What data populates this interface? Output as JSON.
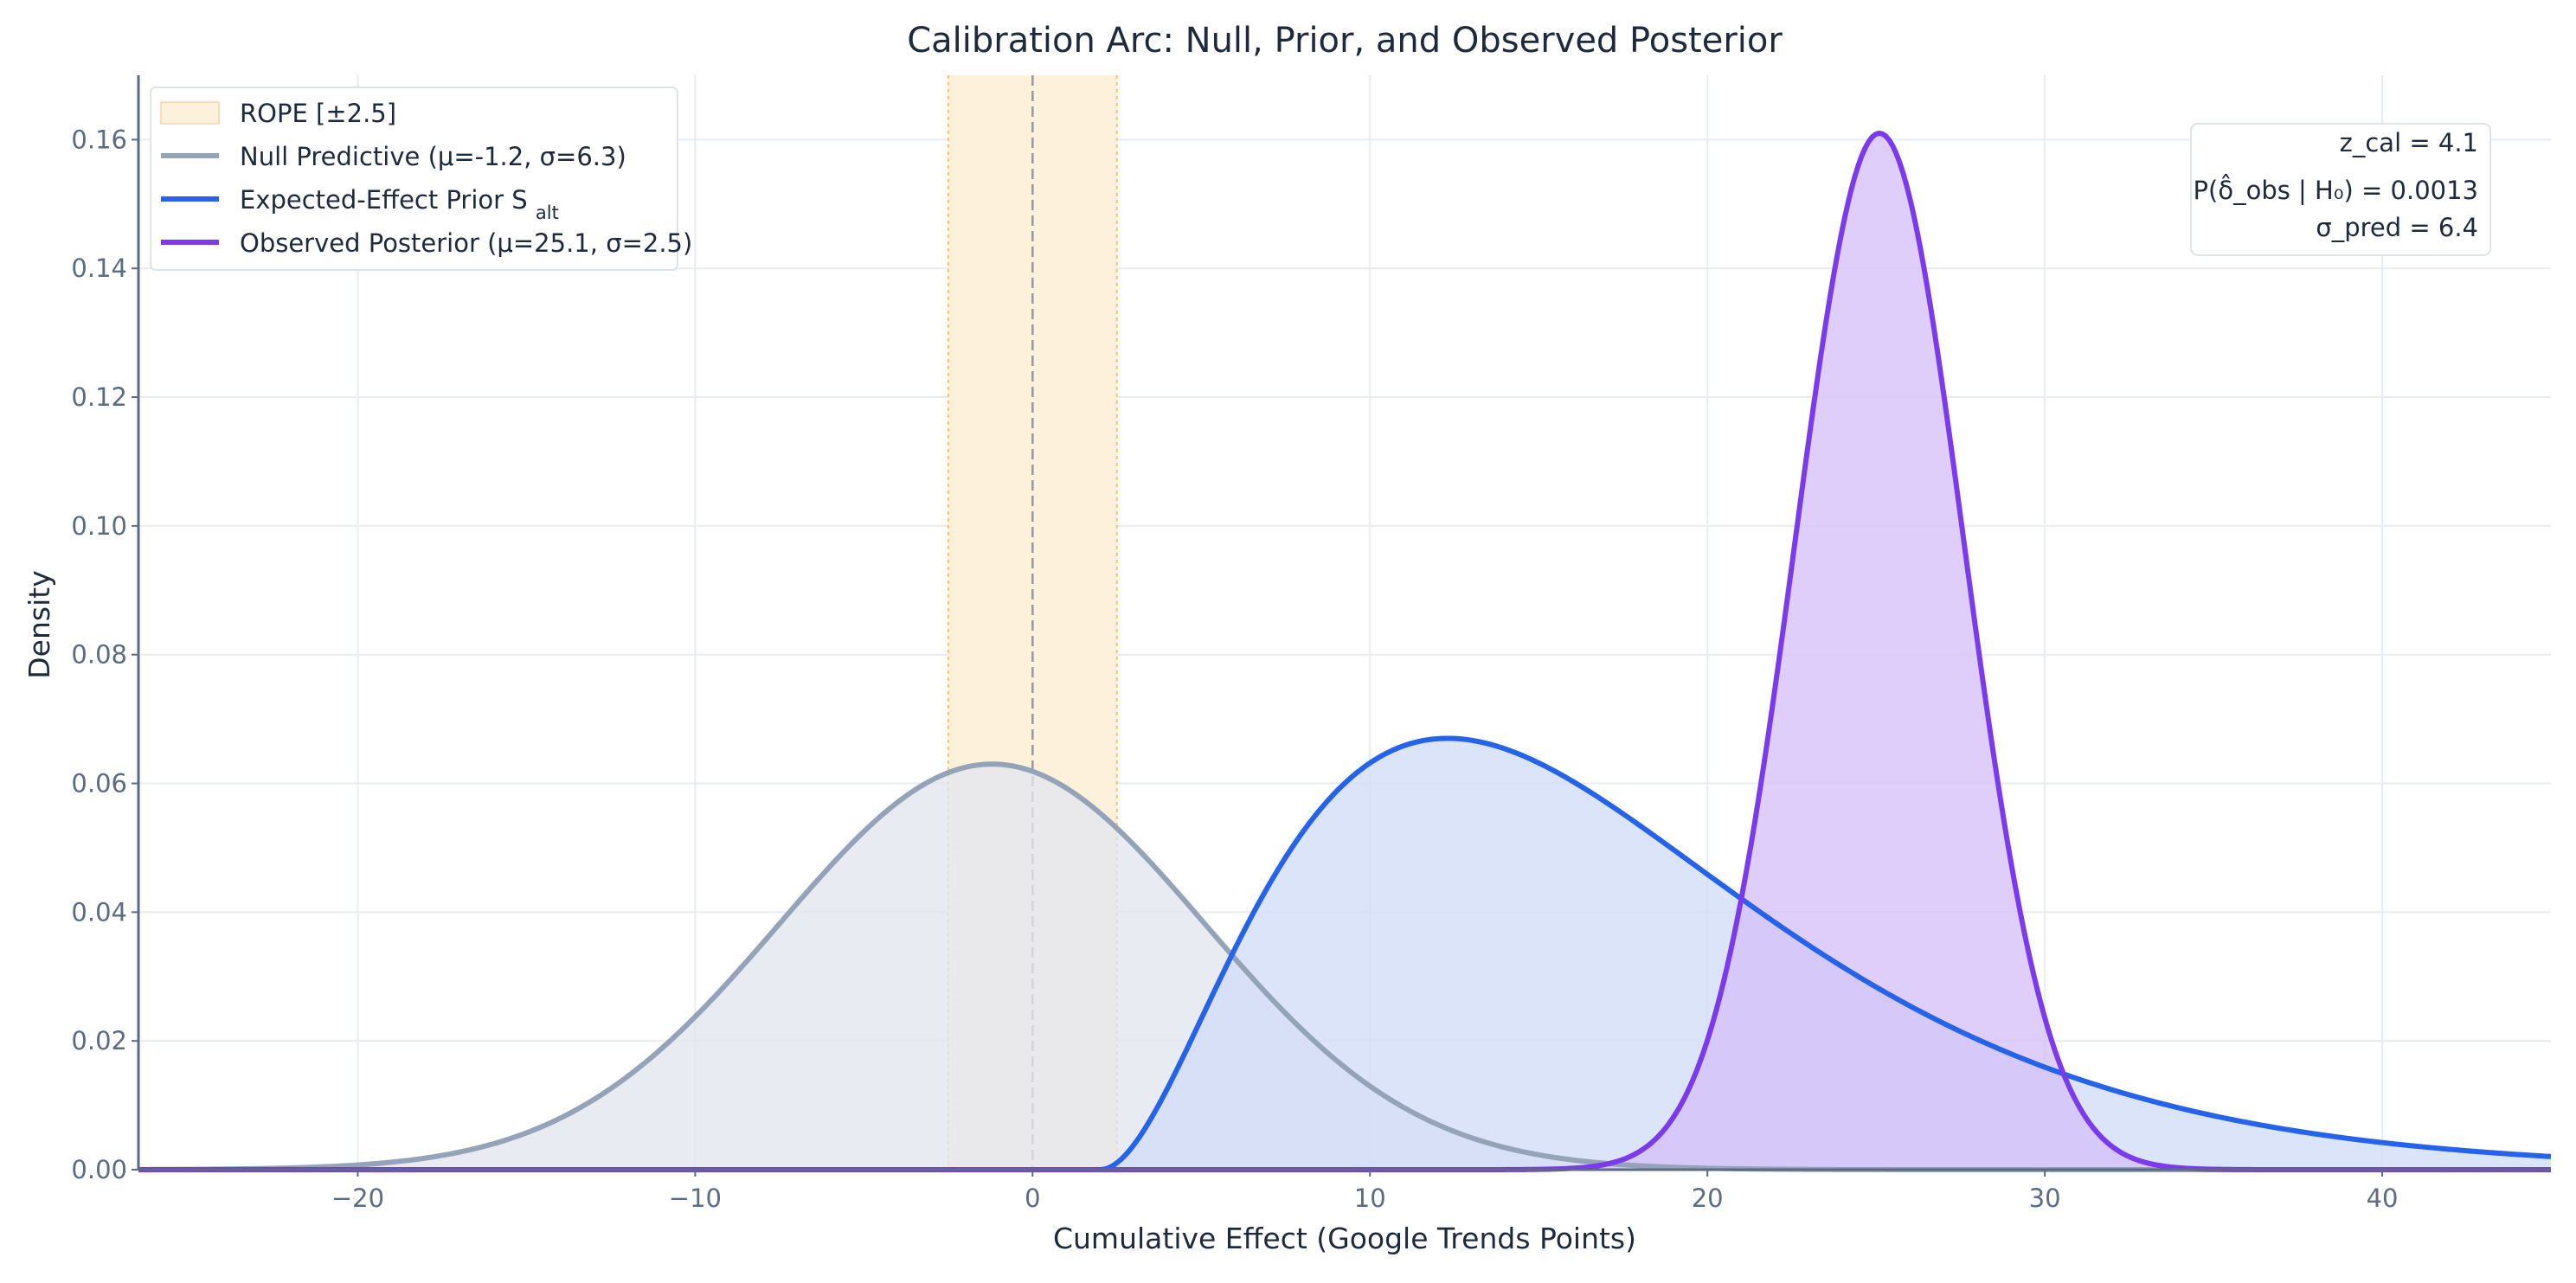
{
  "chart_data": {
    "type": "area",
    "title": "Calibration Arc: Null, Prior, and Observed Posterior",
    "xlabel": "Cumulative Effect (Google Trends Points)",
    "ylabel": "Density",
    "xlim": [
      -26.5,
      45
    ],
    "ylim": [
      0,
      0.17
    ],
    "xticks": [
      -20,
      -10,
      0,
      10,
      20,
      30,
      40
    ],
    "xtick_labels": [
      "−20",
      "−10",
      "0",
      "10",
      "20",
      "30",
      "40"
    ],
    "yticks": [
      0,
      0.02,
      0.04,
      0.06,
      0.08,
      0.1,
      0.12,
      0.14,
      0.16
    ],
    "ytick_labels": [
      "0.00",
      "0.02",
      "0.04",
      "0.06",
      "0.08",
      "0.10",
      "0.12",
      "0.14",
      "0.16"
    ],
    "grid": true,
    "legend_position": "top-left",
    "rope": {
      "label": "ROPE [±2.5]",
      "x_range": [
        -2.5,
        2.5
      ],
      "center_line_x": 0,
      "color": "#f6a623"
    },
    "series": [
      {
        "name": "Null Predictive (μ=-1.2, σ=6.3)",
        "distribution": "normal",
        "mu": -1.2,
        "sigma": 6.3,
        "peak_density": 0.063,
        "line_color": "#94a3b8",
        "fill_color": "#e3e6ee"
      },
      {
        "name": "Expected-Effect Prior S_alt",
        "distribution": "right-skewed",
        "mode": 12.3,
        "peak_density": 0.067,
        "support_start": 2.0,
        "line_color": "#2563eb",
        "fill_color": "#d2dcf8"
      },
      {
        "name": "Observed Posterior (μ=25.1, σ=2.5)",
        "distribution": "normal",
        "mu": 25.1,
        "sigma": 2.5,
        "peak_density": 0.161,
        "line_color": "#7c3aed",
        "fill_color": "#d5c0f7"
      }
    ],
    "annotation": {
      "lines": [
        "z_cal = 4.1",
        "P(δ̂_obs | H₀) = 0.0013",
        "σ_pred = 6.4"
      ],
      "position": "top-right"
    }
  }
}
